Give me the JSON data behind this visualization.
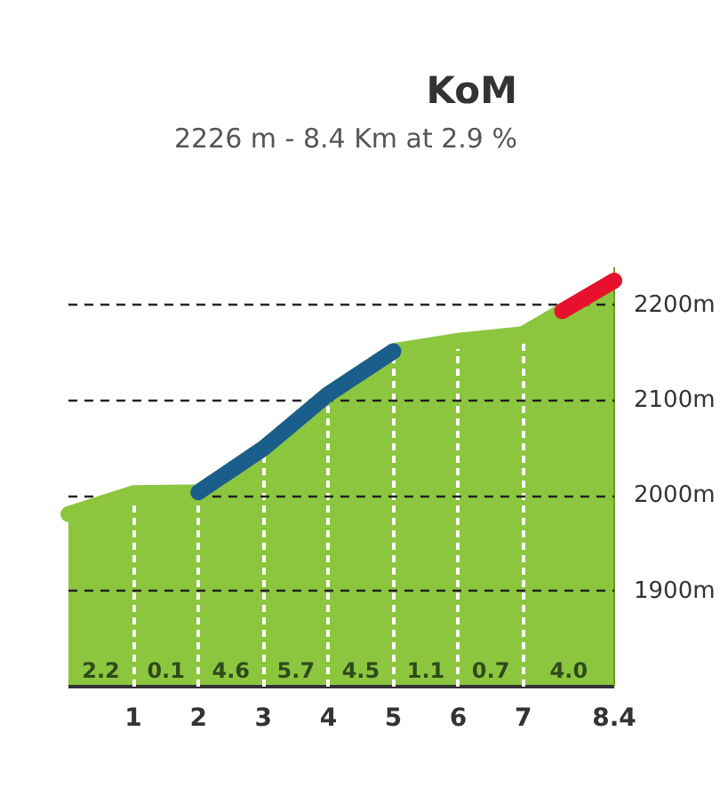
{
  "chart_data": {
    "type": "area",
    "title": "KoM",
    "subtitle": "2226 m - 8.4 Km at 2.9 %",
    "x": [
      0,
      1,
      2,
      3,
      4,
      5,
      6,
      7,
      7.6,
      8.4
    ],
    "series": [
      {
        "color": "#8cc63f",
        "values": [
          1981,
          2003,
          2004,
          2050,
          2107,
          2152,
          2163,
          2170,
          2194,
          2226
        ]
      },
      {
        "type": "line",
        "color": "#1b5e8c",
        "x": [
          2,
          3,
          4,
          5
        ],
        "values": [
          2004,
          2050,
          2107,
          2152
        ]
      },
      {
        "type": "line",
        "color": "#e8112d",
        "x": [
          7.6,
          8.4
        ],
        "values": [
          2194,
          2226
        ]
      }
    ],
    "xlim": [
      0,
      8.4
    ],
    "xticks": [
      1,
      2,
      3,
      4,
      5,
      6,
      7,
      8.4
    ],
    "ylim": [
      1800,
      2240
    ],
    "yticks": [
      {
        "value": 1900,
        "label": "1900m"
      },
      {
        "value": 2000,
        "label": "2000m"
      },
      {
        "value": 2100,
        "label": "2100m"
      },
      {
        "value": 2200,
        "label": "2200m"
      }
    ],
    "grid": true,
    "annotations": [
      "2.2",
      "0.1",
      "4.6",
      "5.7",
      "4.5",
      "1.1",
      "0.7",
      "4.0"
    ]
  }
}
